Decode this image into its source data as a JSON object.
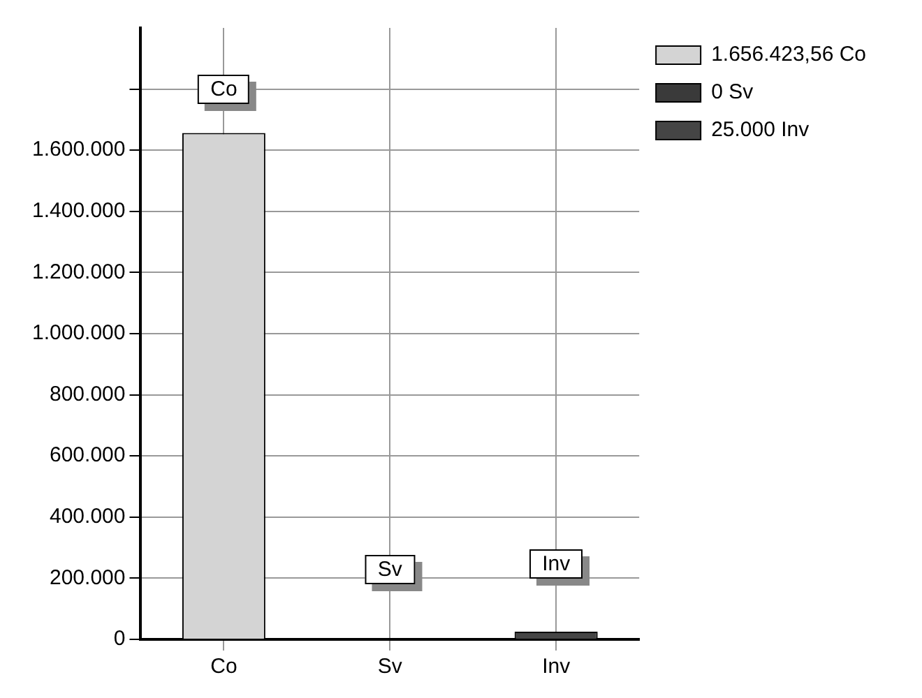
{
  "chart_data": {
    "type": "bar",
    "categories": [
      "Co",
      "Sv",
      "Inv"
    ],
    "series": [
      {
        "name": "1.656.423,56 Co",
        "color": "#d4d4d4",
        "values": [
          1656423.56,
          null,
          null
        ]
      },
      {
        "name": "0 Sv",
        "color": "#3a3a3a",
        "values": [
          null,
          0,
          null
        ]
      },
      {
        "name": "25.000 Inv",
        "color": "#454545",
        "values": [
          null,
          null,
          25000
        ]
      }
    ],
    "ylim": [
      0,
      2000000
    ],
    "yticks": [
      {
        "value": 0,
        "label": "0"
      },
      {
        "value": 200000,
        "label": "200.000"
      },
      {
        "value": 400000,
        "label": "400.000"
      },
      {
        "value": 600000,
        "label": "600.000"
      },
      {
        "value": 800000,
        "label": "800.000"
      },
      {
        "value": 1000000,
        "label": "1.000.000"
      },
      {
        "value": 1200000,
        "label": "1.200.000"
      },
      {
        "value": 1400000,
        "label": "1.400.000"
      },
      {
        "value": 1600000,
        "label": "1.600.000"
      },
      {
        "value": 1800000,
        "label": null
      }
    ],
    "grid": true,
    "legend": "top right",
    "annotations": [
      {
        "text": "Co",
        "x": "Co",
        "y": 1800000
      },
      {
        "text": "Sv",
        "x": "Sv",
        "y": 230000
      },
      {
        "text": "Inv",
        "x": "Inv",
        "y": 245000
      }
    ]
  }
}
